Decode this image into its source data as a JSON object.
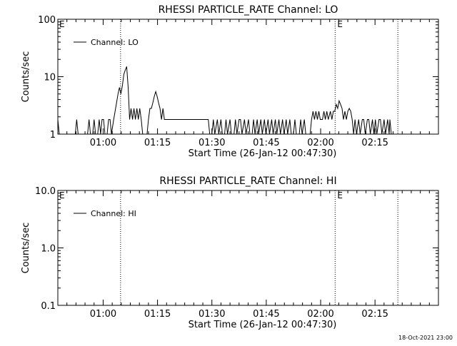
{
  "footer": {
    "generated": "18-Oct-2021 23:00"
  },
  "chart_data": [
    {
      "type": "line",
      "title": "RHESSI PARTICLE_RATE Channel: LO",
      "xlabel": "Start Time (26-Jan-12 00:47:30)",
      "ylabel": "Counts/sec",
      "yscale": "log",
      "ylim": [
        1,
        100
      ],
      "yticks": [
        {
          "v": 1,
          "label": "1"
        },
        {
          "v": 10,
          "label": "10"
        },
        {
          "v": 100,
          "label": "100"
        }
      ],
      "xlim_min": [
        0,
        105
      ],
      "xticks": [
        {
          "v": 12.5,
          "label": "01:00"
        },
        {
          "v": 27.5,
          "label": "01:15"
        },
        {
          "v": 42.5,
          "label": "01:30"
        },
        {
          "v": 57.5,
          "label": "01:45"
        },
        {
          "v": 72.5,
          "label": "02:00"
        },
        {
          "v": 87.5,
          "label": "02:15"
        }
      ],
      "event_markers": [
        {
          "x": 17.3,
          "label": ""
        },
        {
          "x": 76.5,
          "label": "E"
        },
        {
          "x": 93.8,
          "label": ""
        }
      ],
      "left_marker_label": "E",
      "legend": {
        "entry": "Channel: LO",
        "placement": "top-left"
      },
      "grid": false,
      "series": [
        {
          "name": "Channel: LO",
          "color": "#000000",
          "points": [
            [
              0,
              1.8
            ],
            [
              0.4,
              1
            ],
            [
              4.8,
              1
            ],
            [
              5.2,
              1.8
            ],
            [
              5.6,
              1
            ],
            [
              8.2,
              1
            ],
            [
              8.6,
              1.8
            ],
            [
              9,
              1
            ],
            [
              9.6,
              1
            ],
            [
              10,
              1.8
            ],
            [
              10.4,
              1
            ],
            [
              11,
              1
            ],
            [
              11.4,
              1.8
            ],
            [
              11.8,
              1
            ],
            [
              12.2,
              1.8
            ],
            [
              12.6,
              1.8
            ],
            [
              13,
              1
            ],
            [
              13.6,
              1
            ],
            [
              14,
              1.8
            ],
            [
              14.4,
              1.8
            ],
            [
              14.8,
              1
            ],
            [
              15.4,
              1.8
            ],
            [
              15.8,
              2.5
            ],
            [
              16.2,
              3.5
            ],
            [
              16.6,
              5
            ],
            [
              17,
              6.5
            ],
            [
              17.4,
              5
            ],
            [
              17.8,
              7
            ],
            [
              18.2,
              11
            ],
            [
              18.6,
              13
            ],
            [
              19,
              15
            ],
            [
              19.4,
              6.5
            ],
            [
              19.8,
              1.8
            ],
            [
              20.2,
              2.8
            ],
            [
              20.6,
              1.8
            ],
            [
              21,
              2.8
            ],
            [
              21.4,
              1.8
            ],
            [
              21.8,
              2.8
            ],
            [
              22.2,
              1.8
            ],
            [
              22.6,
              2.8
            ],
            [
              23,
              1.8
            ],
            [
              23.4,
              1
            ],
            [
              24.6,
              1
            ],
            [
              25,
              1.8
            ],
            [
              25.4,
              2.8
            ],
            [
              25.8,
              2.8
            ],
            [
              26.2,
              3.5
            ],
            [
              26.6,
              4.5
            ],
            [
              27,
              5.5
            ],
            [
              27.4,
              4.5
            ],
            [
              27.8,
              3.5
            ],
            [
              28.2,
              2.8
            ],
            [
              28.6,
              1.8
            ],
            [
              29,
              2.8
            ],
            [
              29.4,
              1.8
            ],
            [
              29.8,
              1.8
            ],
            [
              41.5,
              1.8
            ],
            [
              41.9,
              1
            ],
            [
              42.5,
              1
            ],
            [
              42.9,
              1.8
            ],
            [
              43.3,
              1
            ],
            [
              44,
              1.8
            ],
            [
              44.4,
              1
            ],
            [
              45,
              1.8
            ],
            [
              45.4,
              1
            ],
            [
              46,
              1
            ],
            [
              46.4,
              1.8
            ],
            [
              46.8,
              1
            ],
            [
              47.5,
              1.8
            ],
            [
              47.9,
              1
            ],
            [
              48.6,
              1
            ],
            [
              49,
              1.8
            ],
            [
              49.4,
              1
            ],
            [
              50,
              1.8
            ],
            [
              50.4,
              1.8
            ],
            [
              50.8,
              1
            ],
            [
              51.5,
              1.8
            ],
            [
              51.9,
              1
            ],
            [
              52.6,
              1.8
            ],
            [
              53,
              1
            ],
            [
              53.6,
              1
            ],
            [
              54,
              1.8
            ],
            [
              54.4,
              1
            ],
            [
              55,
              1.8
            ],
            [
              55.4,
              1
            ],
            [
              56,
              1.8
            ],
            [
              56.4,
              1
            ],
            [
              57,
              1.8
            ],
            [
              57.4,
              1
            ],
            [
              58,
              1.8
            ],
            [
              58.4,
              1
            ],
            [
              59,
              1.8
            ],
            [
              59.4,
              1
            ],
            [
              60,
              1.8
            ],
            [
              60.4,
              1
            ],
            [
              61,
              1.8
            ],
            [
              61.4,
              1
            ],
            [
              62,
              1.8
            ],
            [
              62.4,
              1
            ],
            [
              63,
              1.8
            ],
            [
              63.4,
              1
            ],
            [
              64,
              1.8
            ],
            [
              64.4,
              1
            ],
            [
              65,
              1
            ],
            [
              65.4,
              1.8
            ],
            [
              65.8,
              1
            ],
            [
              66.6,
              1
            ],
            [
              67,
              1.8
            ],
            [
              67.4,
              1
            ],
            [
              68,
              1.8
            ],
            [
              68.4,
              1
            ],
            [
              69.6,
              1
            ],
            [
              70,
              1.8
            ],
            [
              70.4,
              2.5
            ],
            [
              70.8,
              1.8
            ],
            [
              71.2,
              2.5
            ],
            [
              71.6,
              1.8
            ],
            [
              72,
              2.5
            ],
            [
              72.4,
              1.8
            ],
            [
              73,
              1.8
            ],
            [
              73.4,
              2.5
            ],
            [
              73.8,
              1.8
            ],
            [
              74.2,
              2.5
            ],
            [
              74.6,
              1.8
            ],
            [
              75.2,
              2.5
            ],
            [
              75.6,
              1.8
            ],
            [
              76,
              2.5
            ],
            [
              76.4,
              2.5
            ],
            [
              76.8,
              3.3
            ],
            [
              77.2,
              2.8
            ],
            [
              77.6,
              3.8
            ],
            [
              78,
              3.3
            ],
            [
              78.4,
              2.8
            ],
            [
              78.8,
              1.8
            ],
            [
              79.2,
              2.5
            ],
            [
              79.6,
              1.8
            ],
            [
              80,
              2.5
            ],
            [
              80.4,
              2.8
            ],
            [
              80.8,
              2.5
            ],
            [
              81.2,
              1.8
            ],
            [
              81.6,
              1
            ],
            [
              82,
              1.8
            ],
            [
              82.4,
              1
            ],
            [
              83,
              1.8
            ],
            [
              83.4,
              1
            ],
            [
              84,
              1.8
            ],
            [
              84.4,
              1.8
            ],
            [
              84.8,
              1
            ],
            [
              85.4,
              1.8
            ],
            [
              85.8,
              1.8
            ],
            [
              86.2,
              1
            ],
            [
              86.8,
              1.8
            ],
            [
              87.2,
              1
            ],
            [
              87.6,
              1.8
            ],
            [
              88,
              1
            ],
            [
              88.6,
              1.8
            ],
            [
              89,
              1.8
            ],
            [
              89.4,
              1
            ],
            [
              90,
              1.8
            ],
            [
              90.4,
              1
            ],
            [
              91,
              1.8
            ],
            [
              91.4,
              1
            ],
            [
              91.6,
              1.8
            ],
            [
              92,
              1
            ]
          ]
        }
      ]
    },
    {
      "type": "line",
      "title": "RHESSI PARTICLE_RATE Channel: HI",
      "xlabel": "Start Time (26-Jan-12 00:47:30)",
      "ylabel": "Counts/sec",
      "yscale": "log",
      "ylim": [
        0.1,
        10
      ],
      "yticks": [
        {
          "v": 0.1,
          "label": "0.1"
        },
        {
          "v": 1,
          "label": "1.0"
        },
        {
          "v": 10,
          "label": "10.0"
        }
      ],
      "xlim_min": [
        0,
        105
      ],
      "xticks": [
        {
          "v": 12.5,
          "label": "01:00"
        },
        {
          "v": 27.5,
          "label": "01:15"
        },
        {
          "v": 42.5,
          "label": "01:30"
        },
        {
          "v": 57.5,
          "label": "01:45"
        },
        {
          "v": 72.5,
          "label": "02:00"
        },
        {
          "v": 87.5,
          "label": "02:15"
        }
      ],
      "event_markers": [
        {
          "x": 17.3,
          "label": ""
        },
        {
          "x": 76.5,
          "label": "E"
        },
        {
          "x": 93.8,
          "label": ""
        }
      ],
      "left_marker_label": "E",
      "legend": {
        "entry": "Channel: HI",
        "placement": "top-left"
      },
      "grid": false,
      "series": [
        {
          "name": "Channel: HI",
          "color": "#000000",
          "points": []
        }
      ]
    }
  ]
}
